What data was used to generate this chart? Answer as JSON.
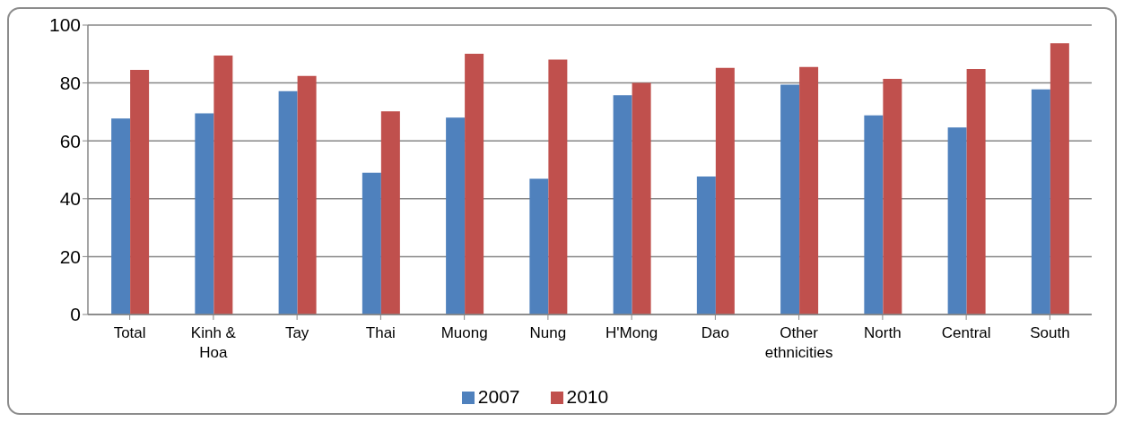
{
  "chart_data": {
    "type": "bar",
    "categories": [
      "Total",
      "Kinh & Hoa",
      "Tay",
      "Thai",
      "Muong",
      "Nung",
      "H'Mong",
      "Dao",
      "Other ethnicities",
      "North",
      "Central",
      "South"
    ],
    "series": [
      {
        "name": "2007",
        "color": "#4f81bd",
        "values": [
          67.7,
          69.5,
          77.2,
          49.0,
          68.0,
          46.9,
          75.8,
          47.7,
          79.4,
          68.8,
          64.6,
          77.8
        ]
      },
      {
        "name": "2010",
        "color": "#c0504d",
        "values": [
          84.5,
          89.5,
          82.4,
          70.2,
          90.1,
          88.1,
          80.0,
          85.2,
          85.5,
          81.4,
          84.8,
          93.7
        ]
      }
    ],
    "ylim": [
      0,
      100
    ],
    "yticks": [
      0,
      20,
      40,
      60,
      80,
      100
    ],
    "grid": "y",
    "legend": "bottom"
  }
}
